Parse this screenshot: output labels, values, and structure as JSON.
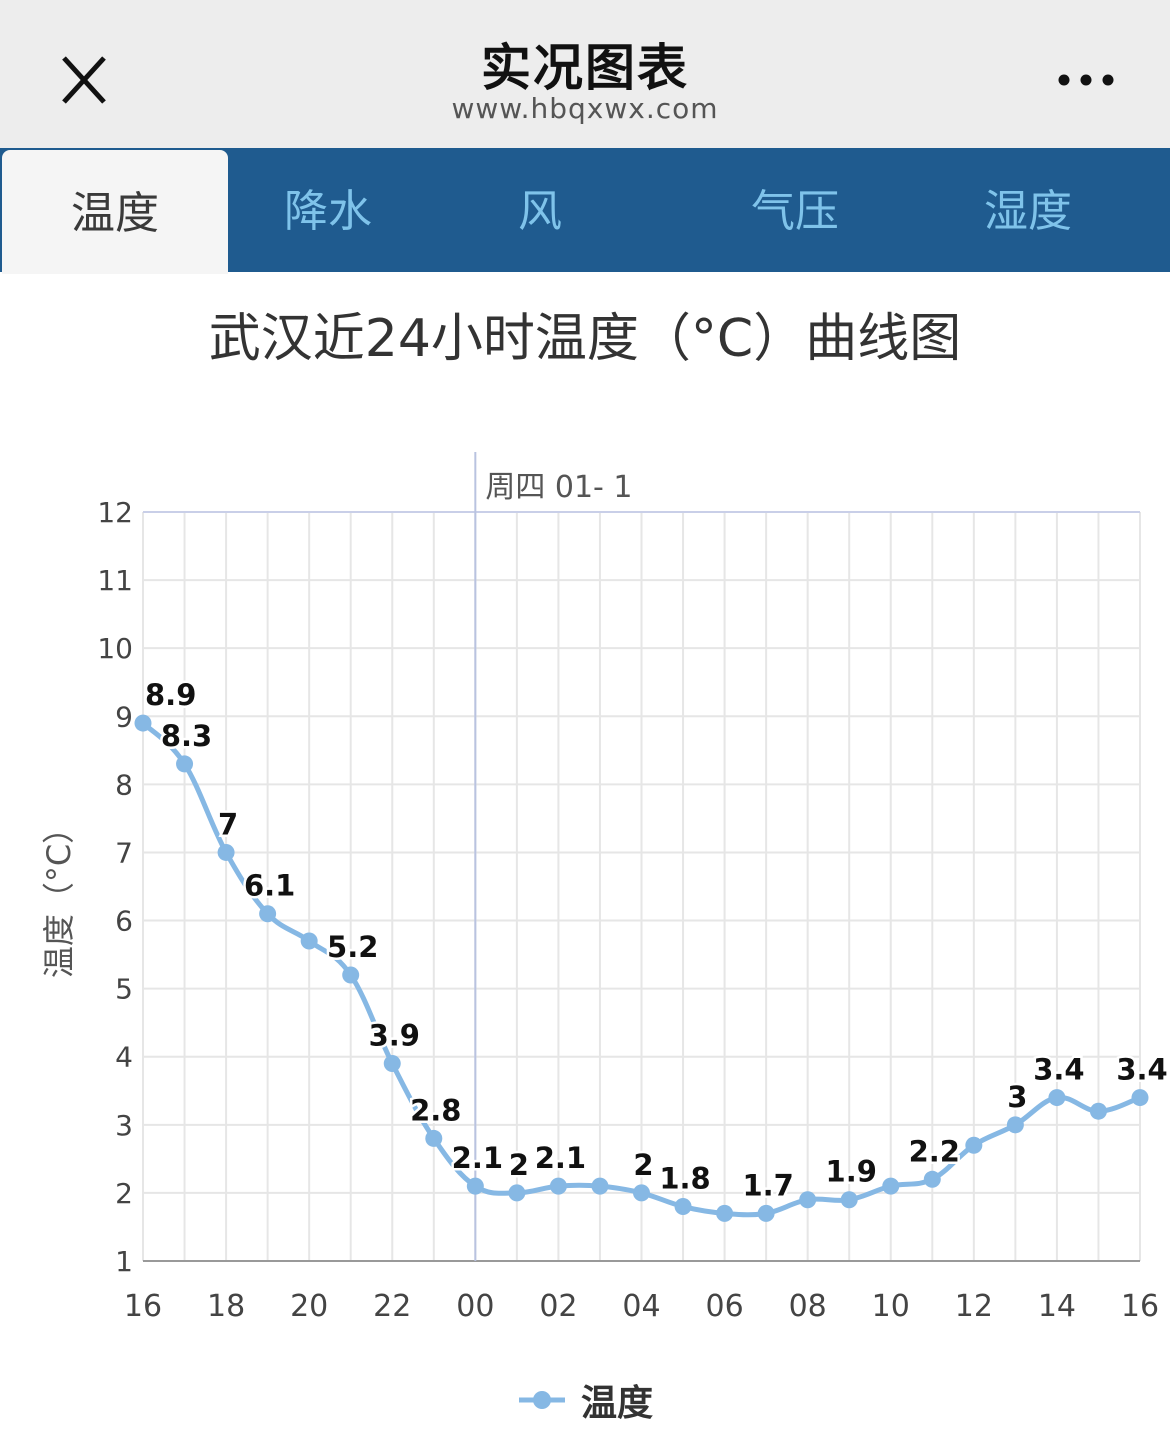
{
  "header": {
    "title": "实况图表",
    "url": "www.hbqxwx.com",
    "close_icon": "close-icon",
    "more_icon": "more-dots-icon"
  },
  "tabs": [
    {
      "label": "温度",
      "active": true
    },
    {
      "label": "降水",
      "active": false
    },
    {
      "label": "风",
      "active": false
    },
    {
      "label": "气压",
      "active": false
    },
    {
      "label": "湿度",
      "active": false
    }
  ],
  "colors": {
    "tabbar": "#1f5b8f",
    "tab_text": "#7fc3ea",
    "series": "#86b8e4",
    "grid": "#e6e6e6"
  },
  "chart_data": {
    "type": "line",
    "title": "武汉近24小时温度（°C）曲线图",
    "ylabel": "温度（°C）",
    "xlabel": "",
    "ylim": [
      1,
      12
    ],
    "yticks": [
      1,
      2,
      3,
      4,
      5,
      6,
      7,
      8,
      9,
      10,
      11,
      12
    ],
    "x": [
      "16",
      "17",
      "18",
      "19",
      "20",
      "21",
      "22",
      "23",
      "00",
      "01",
      "02",
      "03",
      "04",
      "05",
      "06",
      "07",
      "08",
      "09",
      "10",
      "11",
      "12",
      "13",
      "14",
      "15",
      "16"
    ],
    "xtick_labels": [
      "16",
      "18",
      "20",
      "22",
      "00",
      "02",
      "04",
      "06",
      "08",
      "10",
      "12",
      "14",
      "16"
    ],
    "day_marker": {
      "at": "00",
      "label": "周四 01- 1"
    },
    "grid": true,
    "legend": "bottom-center",
    "series": [
      {
        "name": "温度",
        "values": [
          8.9,
          8.3,
          7.0,
          6.1,
          5.7,
          5.2,
          3.9,
          2.8,
          2.1,
          2.0,
          2.1,
          2.1,
          2.0,
          1.8,
          1.7,
          1.7,
          1.9,
          1.9,
          2.1,
          2.2,
          2.7,
          3.0,
          3.4,
          3.2,
          3.4
        ],
        "data_labels": [
          "8.9",
          "8.3",
          "7",
          "6.1",
          "",
          "5.2",
          "3.9",
          "2.8",
          "2.1",
          "2",
          "2.1",
          "",
          "2",
          "1.8",
          "",
          "1.7",
          "",
          "1.9",
          "",
          "2.2",
          "",
          "3",
          "3.4",
          "",
          "3.4"
        ]
      }
    ]
  }
}
